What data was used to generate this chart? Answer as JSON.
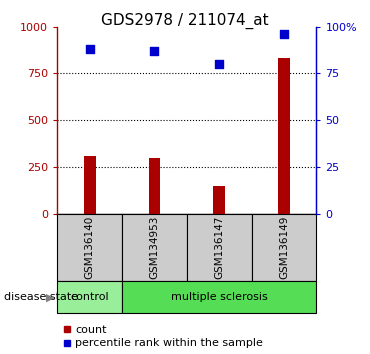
{
  "title": "GDS2978 / 211074_at",
  "samples": [
    "GSM136140",
    "GSM134953",
    "GSM136147",
    "GSM136149"
  ],
  "counts": [
    310,
    300,
    150,
    830
  ],
  "percentiles": [
    88,
    87,
    80,
    96
  ],
  "ylim_left": [
    0,
    1000
  ],
  "ylim_right": [
    0,
    100
  ],
  "yticks_left": [
    0,
    250,
    500,
    750,
    1000
  ],
  "yticks_left_labels": [
    "0",
    "250",
    "500",
    "750",
    "1000"
  ],
  "yticks_right": [
    0,
    25,
    50,
    75,
    100
  ],
  "yticks_right_labels": [
    "0",
    "25",
    "50",
    "75",
    "100%"
  ],
  "bar_color": "#aa0000",
  "scatter_color": "#0000cc",
  "bar_width": 0.18,
  "grid_color": "black",
  "sample_box_color": "#cccccc",
  "disease_color_control": "#99ee99",
  "disease_color_ms": "#55dd55",
  "disease_label": "disease state",
  "legend_count_label": "count",
  "legend_pct_label": "percentile rank within the sample",
  "title_fontsize": 11,
  "tick_fontsize": 8,
  "label_fontsize": 8,
  "sample_fontsize": 7.5
}
